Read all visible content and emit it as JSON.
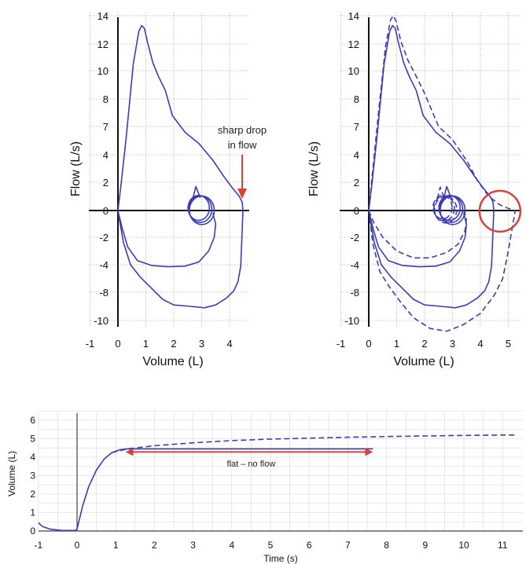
{
  "chart_data": [
    {
      "type": "line",
      "xlabel": "Volume (L)",
      "ylabel": "Flow (L/s)",
      "xlim": [
        -1,
        4.6
      ],
      "x_ticks": [
        "-1",
        "0",
        "1",
        "2",
        "3",
        "4"
      ],
      "y_ticks": [
        "14",
        "12",
        "10",
        "8",
        "7",
        "4",
        "2",
        "0",
        "-2",
        "-4",
        "-8",
        "-10"
      ],
      "grid": true,
      "annotations": [
        {
          "text": [
            "sharp drop",
            "in flow"
          ],
          "x": 4.45,
          "y": 0.6
        }
      ],
      "series": [
        {
          "style": "solid",
          "loops": [
            [
              [
                0,
                0
              ],
              [
                0.12,
                2
              ],
              [
                0.3,
                6
              ],
              [
                0.55,
                10.5
              ],
              [
                0.75,
                12.9
              ],
              [
                0.85,
                13.3
              ],
              [
                0.95,
                13.1
              ],
              [
                1.05,
                12.2
              ],
              [
                1.25,
                10.6
              ],
              [
                1.45,
                9.6
              ],
              [
                1.7,
                8.6
              ],
              [
                1.95,
                7.4
              ],
              [
                2.4,
                6.4
              ],
              [
                2.9,
                5.2
              ],
              [
                3.4,
                3.6
              ],
              [
                3.8,
                2.4
              ],
              [
                4.1,
                1.6
              ],
              [
                4.35,
                1.0
              ],
              [
                4.45,
                0.6
              ],
              [
                4.48,
                0
              ],
              [
                4.45,
                -1.5
              ],
              [
                4.4,
                -4.2
              ],
              [
                4.3,
                -6.5
              ],
              [
                4.15,
                -7.8
              ],
              [
                3.9,
                -8.4
              ],
              [
                3.5,
                -8.9
              ],
              [
                3.1,
                -9.1
              ],
              [
                2.6,
                -9.0
              ],
              [
                2.0,
                -8.9
              ],
              [
                1.6,
                -8.5
              ],
              [
                1.2,
                -7.4
              ],
              [
                0.8,
                -5.8
              ],
              [
                0.45,
                -4.0
              ],
              [
                0.2,
                -2.4
              ],
              [
                0.08,
                -1.0
              ],
              [
                0,
                0
              ]
            ],
            [
              [
                0,
                0
              ],
              [
                0.15,
                -1.3
              ],
              [
                0.35,
                -2.7
              ],
              [
                0.7,
                -3.7
              ],
              [
                1.2,
                -4.1
              ],
              [
                1.8,
                -4.3
              ],
              [
                2.4,
                -4.2
              ],
              [
                2.9,
                -3.8
              ],
              [
                3.25,
                -3.0
              ],
              [
                3.45,
                -2.0
              ],
              [
                3.5,
                -1.0
              ],
              [
                3.4,
                -0.2
              ]
            ]
          ],
          "tidal_loop": {
            "cx": 2.95,
            "cy": 0.1,
            "rx": 0.45,
            "ry": 0.8
          }
        }
      ]
    },
    {
      "type": "line",
      "xlabel": "Volume (L)",
      "ylabel": "Flow (L/s)",
      "xlim": [
        -1,
        5.5
      ],
      "x_ticks": [
        "-1",
        "0",
        "1",
        "2",
        "3",
        "4",
        "5"
      ],
      "y_ticks": [
        "14",
        "12",
        "10",
        "8",
        "7",
        "4",
        "2",
        "0",
        "-2",
        "-4",
        "-8",
        "-10"
      ],
      "grid": true,
      "highlight_circle": {
        "x": 4.7,
        "y": -0.05
      },
      "series": [
        {
          "style": "solid",
          "loops": [
            [
              [
                0,
                0
              ],
              [
                0.12,
                2
              ],
              [
                0.3,
                6
              ],
              [
                0.55,
                10.5
              ],
              [
                0.75,
                12.9
              ],
              [
                0.85,
                13.3
              ],
              [
                0.95,
                13.1
              ],
              [
                1.05,
                12.2
              ],
              [
                1.25,
                10.6
              ],
              [
                1.45,
                9.6
              ],
              [
                1.7,
                8.6
              ],
              [
                1.95,
                7.4
              ],
              [
                2.4,
                6.4
              ],
              [
                2.9,
                5.2
              ],
              [
                3.4,
                3.6
              ],
              [
                3.8,
                2.4
              ],
              [
                4.1,
                1.6
              ],
              [
                4.35,
                1.0
              ],
              [
                4.45,
                0.6
              ],
              [
                4.48,
                0
              ],
              [
                4.45,
                -1.5
              ],
              [
                4.4,
                -4.2
              ],
              [
                4.3,
                -6.5
              ],
              [
                4.15,
                -7.8
              ],
              [
                3.9,
                -8.4
              ],
              [
                3.5,
                -8.9
              ],
              [
                3.1,
                -9.1
              ],
              [
                2.6,
                -9.0
              ],
              [
                2.0,
                -8.9
              ],
              [
                1.6,
                -8.5
              ],
              [
                1.2,
                -7.4
              ],
              [
                0.8,
                -5.8
              ],
              [
                0.45,
                -4.0
              ],
              [
                0.2,
                -2.4
              ],
              [
                0.08,
                -1.0
              ],
              [
                0,
                0
              ]
            ],
            [
              [
                0,
                0
              ],
              [
                0.15,
                -1.3
              ],
              [
                0.35,
                -2.7
              ],
              [
                0.7,
                -3.7
              ],
              [
                1.2,
                -4.1
              ],
              [
                1.8,
                -4.3
              ],
              [
                2.4,
                -4.2
              ],
              [
                2.9,
                -3.8
              ],
              [
                3.25,
                -3.0
              ],
              [
                3.45,
                -2.0
              ],
              [
                3.5,
                -1.0
              ],
              [
                3.4,
                -0.2
              ]
            ]
          ],
          "tidal_loop": {
            "cx": 2.95,
            "cy": 0.1,
            "rx": 0.45,
            "ry": 0.8
          }
        },
        {
          "style": "dashed",
          "loops": [
            [
              [
                0,
                0
              ],
              [
                0.15,
                3
              ],
              [
                0.35,
                7.5
              ],
              [
                0.6,
                11.8
              ],
              [
                0.78,
                13.7
              ],
              [
                0.88,
                14.0
              ],
              [
                0.98,
                13.6
              ],
              [
                1.15,
                12.2
              ],
              [
                1.4,
                10.8
              ],
              [
                1.7,
                9.6
              ],
              [
                2.0,
                8.4
              ],
              [
                2.5,
                7.0
              ],
              [
                3.0,
                5.6
              ],
              [
                3.5,
                3.6
              ],
              [
                3.9,
                2.1
              ],
              [
                4.3,
                1.0
              ],
              [
                4.7,
                0.4
              ],
              [
                5.0,
                0.15
              ],
              [
                5.25,
                0
              ],
              [
                5.15,
                -1.2
              ],
              [
                5.0,
                -3.0
              ],
              [
                4.8,
                -6.0
              ],
              [
                4.5,
                -8.2
              ],
              [
                4.0,
                -9.5
              ],
              [
                3.4,
                -10.3
              ],
              [
                2.8,
                -10.8
              ],
              [
                2.2,
                -10.6
              ],
              [
                1.6,
                -9.8
              ],
              [
                1.1,
                -8.6
              ],
              [
                0.7,
                -7.0
              ],
              [
                0.4,
                -5.0
              ],
              [
                0.15,
                -2.5
              ],
              [
                0,
                0
              ]
            ],
            [
              [
                0,
                0
              ],
              [
                0.18,
                -0.9
              ],
              [
                0.5,
                -2.0
              ],
              [
                1.0,
                -3.0
              ],
              [
                1.6,
                -3.5
              ],
              [
                2.2,
                -3.5
              ],
              [
                2.8,
                -3.1
              ],
              [
                3.2,
                -2.5
              ],
              [
                3.45,
                -1.5
              ],
              [
                3.5,
                -0.6
              ],
              [
                3.4,
                0
              ]
            ]
          ],
          "tidal_loop": {
            "cx": 2.7,
            "cy": 0.15,
            "rx": 0.4,
            "ry": 0.75
          }
        }
      ]
    },
    {
      "type": "line",
      "xlabel": "Time (s)",
      "ylabel": "Volume (L)",
      "xlim": [
        -1,
        11.4
      ],
      "ylim": [
        0,
        6.5
      ],
      "x_ticks": [
        "-1",
        "0",
        "1",
        "2",
        "3",
        "4",
        "5",
        "6",
        "7",
        "8",
        "9",
        "10",
        "11"
      ],
      "y_ticks": [
        "0",
        "1",
        "2",
        "3",
        "4",
        "5",
        "6"
      ],
      "grid": true,
      "annotations": [
        {
          "text": "flat – no flow",
          "x": 4.5,
          "y": 3.65
        }
      ],
      "arrow": {
        "x0": 1.25,
        "x1": 7.65,
        "y": 4.28
      },
      "series": [
        {
          "style": "solid",
          "points": [
            [
              -1,
              0.45
            ],
            [
              -0.9,
              0.25
            ],
            [
              -0.7,
              0.1
            ],
            [
              -0.4,
              0.03
            ],
            [
              -0.05,
              0.03
            ],
            [
              0.0,
              0.1
            ],
            [
              0.05,
              0.55
            ],
            [
              0.15,
              1.4
            ],
            [
              0.3,
              2.4
            ],
            [
              0.5,
              3.3
            ],
            [
              0.7,
              3.9
            ],
            [
              0.9,
              4.25
            ],
            [
              1.1,
              4.4
            ],
            [
              1.3,
              4.45
            ],
            [
              2,
              4.45
            ],
            [
              4,
              4.45
            ],
            [
              6,
              4.45
            ],
            [
              7.65,
              4.45
            ]
          ]
        },
        {
          "style": "dashed",
          "points": [
            [
              0.9,
              4.25
            ],
            [
              1.3,
              4.45
            ],
            [
              2,
              4.62
            ],
            [
              3,
              4.78
            ],
            [
              4,
              4.9
            ],
            [
              5,
              4.98
            ],
            [
              6,
              5.03
            ],
            [
              7,
              5.08
            ],
            [
              8,
              5.12
            ],
            [
              9,
              5.15
            ],
            [
              10,
              5.18
            ],
            [
              11,
              5.2
            ],
            [
              11.35,
              5.2
            ]
          ]
        }
      ]
    }
  ]
}
